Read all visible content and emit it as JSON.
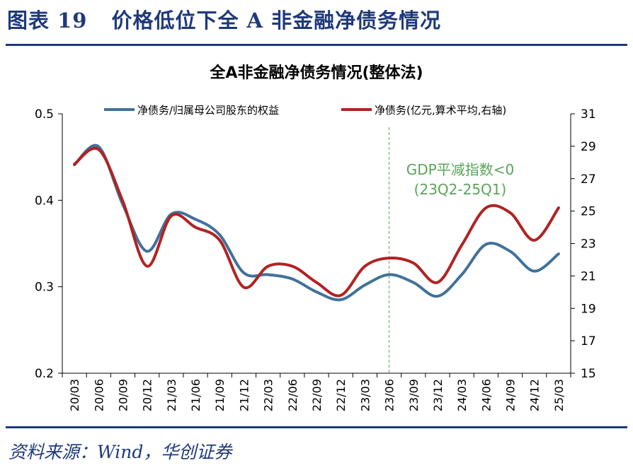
{
  "figure": {
    "label": "图表 19",
    "title": "价格低位下全 A 非金融净债务情况",
    "source": "资料来源：Wind，华创证券"
  },
  "colors": {
    "navy": "#1f3a7a",
    "series_blue": "#41719c",
    "series_red": "#b22222",
    "annotation_green": "#5aa45a",
    "axis": "#000000"
  },
  "chart_data": {
    "type": "line",
    "title": "全A非金融净债务情况(整体法)",
    "annotation": {
      "x": "23/06",
      "lines": [
        "GDP平减指数<0",
        "(23Q2-25Q1)"
      ],
      "line_style": "dashed"
    },
    "categories": [
      "20/03",
      "20/06",
      "20/09",
      "20/12",
      "21/03",
      "21/06",
      "21/09",
      "21/12",
      "22/03",
      "22/06",
      "22/09",
      "22/12",
      "23/03",
      "23/06",
      "23/09",
      "23/12",
      "24/03",
      "24/06",
      "24/09",
      "24/12",
      "25/03"
    ],
    "y_left": {
      "min": 0.2,
      "max": 0.5,
      "ticks": [
        "0.2",
        "0.3",
        "0.4",
        "0.5"
      ]
    },
    "y_right": {
      "min": 15,
      "max": 31,
      "ticks": [
        "15",
        "17",
        "19",
        "21",
        "23",
        "25",
        "27",
        "29",
        "31"
      ]
    },
    "legend_position": "top",
    "series": [
      {
        "name": "净债务/归属母公司股东的权益",
        "axis": "left",
        "color": "#41719c",
        "values": [
          0.441,
          0.462,
          0.395,
          0.341,
          0.384,
          0.378,
          0.36,
          0.316,
          0.314,
          0.309,
          0.294,
          0.285,
          0.302,
          0.314,
          0.305,
          0.289,
          0.314,
          0.349,
          0.341,
          0.318,
          0.338
        ]
      },
      {
        "name": "净债务(亿元,算术平均,右轴)",
        "axis": "right",
        "color": "#b22222",
        "values": [
          27.9,
          28.8,
          25.6,
          21.6,
          24.7,
          24.0,
          23.2,
          20.3,
          21.6,
          21.6,
          20.6,
          19.8,
          21.6,
          22.1,
          21.8,
          20.6,
          22.9,
          25.2,
          24.9,
          23.2,
          25.2
        ]
      }
    ]
  }
}
